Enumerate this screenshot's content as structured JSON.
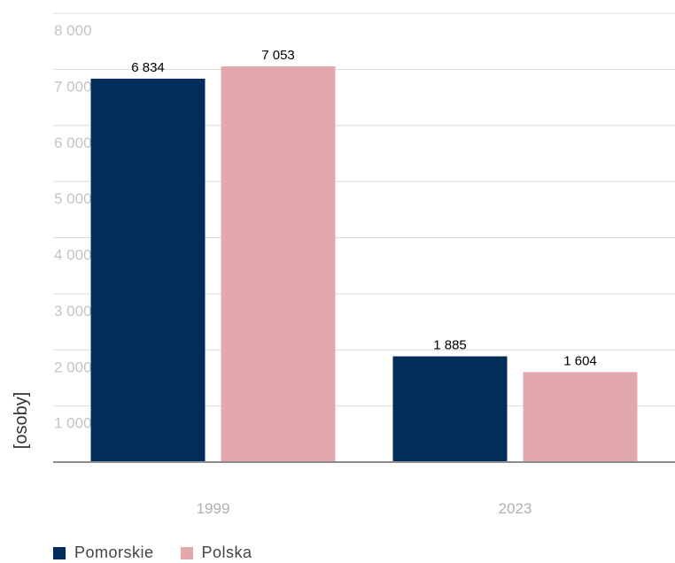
{
  "chart_data": {
    "type": "bar",
    "categories": [
      "1999",
      "2023"
    ],
    "series": [
      {
        "name": "Pomorskie",
        "values": [
          6834,
          1885
        ],
        "labels": [
          "6 834",
          "1 885"
        ],
        "color": "#002D5A"
      },
      {
        "name": "Polska",
        "values": [
          7053,
          1604
        ],
        "labels": [
          "7 053",
          "1 604"
        ],
        "color": "#E3A8AC"
      }
    ],
    "ylabel": "[osoby]",
    "ylim": [
      0,
      8000
    ],
    "yticks": [
      {
        "value": 1000,
        "label": "1 000"
      },
      {
        "value": 2000,
        "label": "2 000"
      },
      {
        "value": 3000,
        "label": "3 000"
      },
      {
        "value": 4000,
        "label": "4 000"
      },
      {
        "value": 5000,
        "label": "5 000"
      },
      {
        "value": 6000,
        "label": "6 000"
      },
      {
        "value": 7000,
        "label": "7 000"
      },
      {
        "value": 8000,
        "label": "8 000"
      }
    ],
    "grid": true,
    "legend_position": "bottom-left"
  }
}
